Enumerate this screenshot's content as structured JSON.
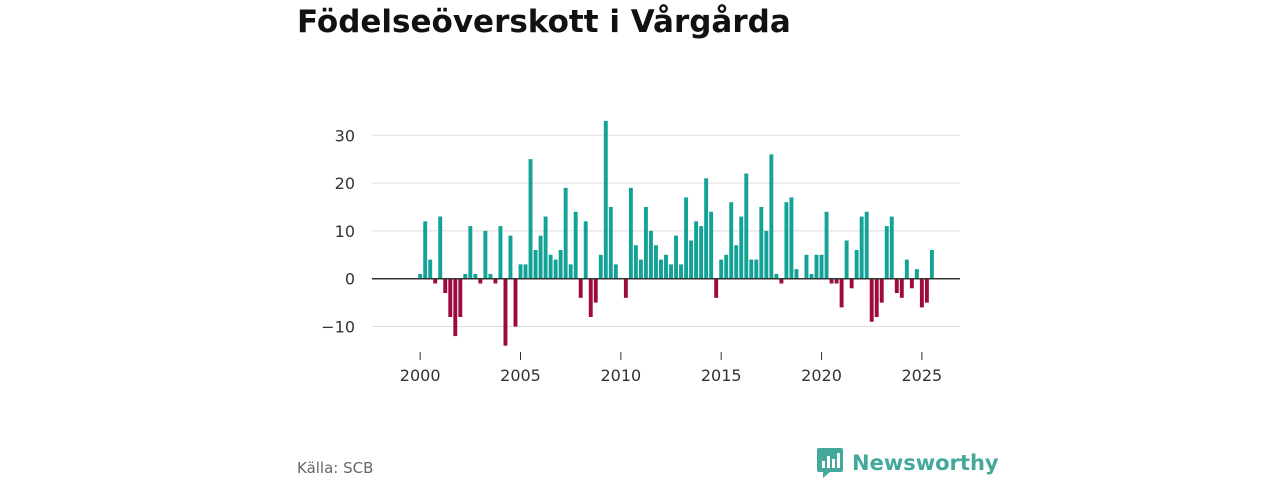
{
  "title": "Födelseöverskott i Vårgårda",
  "source": "Källa: SCB",
  "brand": {
    "name": "Newsworthy",
    "icon": "bar-chart-logo-icon"
  },
  "colors": {
    "positive": "#13a396",
    "negative": "#9d0a3f",
    "grid": "#dddddd",
    "zero_line": "#333333",
    "brand": "#44a89a"
  },
  "chart_data": {
    "type": "bar",
    "title": "Födelseöverskott i Vårgårda",
    "xlabel": "",
    "ylabel": "",
    "x_start": 2000.0,
    "x_step": 0.25,
    "xlim": [
      1997.6,
      2026.9
    ],
    "xticks": [
      2000,
      2005,
      2010,
      2015,
      2020,
      2025
    ],
    "ylim": [
      -17,
      38
    ],
    "yticks": [
      -10,
      0,
      10,
      20,
      30
    ],
    "ytick_labels": [
      "−10",
      "0",
      "10",
      "20",
      "30"
    ],
    "grid": true,
    "values": [
      1,
      12,
      4,
      -1,
      13,
      -3,
      -8,
      -12,
      -8,
      1,
      11,
      1,
      -1,
      10,
      1,
      -1,
      11,
      -14,
      9,
      -10,
      3,
      3,
      25,
      6,
      9,
      13,
      5,
      4,
      6,
      19,
      3,
      14,
      -4,
      12,
      -8,
      -5,
      5,
      33,
      15,
      3,
      0,
      -4,
      19,
      7,
      4,
      15,
      10,
      7,
      4,
      5,
      3,
      9,
      3,
      17,
      8,
      12,
      11,
      21,
      14,
      -4,
      4,
      5,
      16,
      7,
      13,
      22,
      4,
      4,
      15,
      10,
      26,
      1,
      -1,
      16,
      17,
      2,
      0,
      5,
      1,
      5,
      5,
      14,
      -1,
      -1,
      -6,
      8,
      -2,
      6,
      13,
      14,
      -9,
      -8,
      -5,
      11,
      13,
      -3,
      -4,
      4,
      -2,
      2,
      -6,
      -5,
      6
    ]
  }
}
